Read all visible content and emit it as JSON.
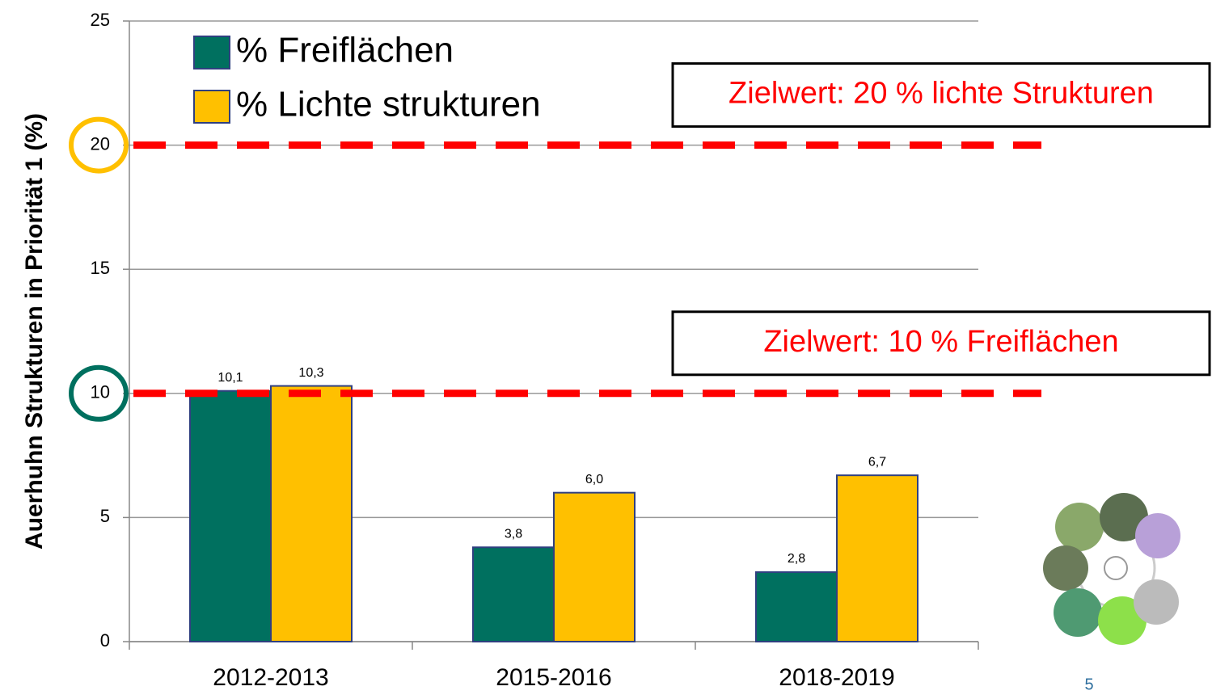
{
  "chart_data": {
    "type": "bar",
    "y_label": "Auerhuhn Strukturen in Priorität 1 (%)",
    "categories": [
      "2012-2013",
      "2015-2016",
      "2018-2019"
    ],
    "series": [
      {
        "name": "% Freiflächen",
        "color": "#00705f",
        "values": [
          10.1,
          3.8,
          2.8
        ],
        "value_labels": [
          "10,1",
          "3,8",
          "2,8"
        ]
      },
      {
        "name": "% Lichte strukturen",
        "color": "#ffc000",
        "values": [
          10.3,
          6.0,
          6.7
        ],
        "value_labels": [
          "10,3",
          "6,0",
          "6,7"
        ]
      }
    ],
    "ylim": [
      0,
      25
    ],
    "yticks": [
      0,
      5,
      10,
      15,
      20,
      25
    ],
    "grid": true,
    "legend": "top-left",
    "reference_lines": [
      {
        "value": 20,
        "color": "#ff0000",
        "label": "Zielwert: 20 % lichte Strukturen"
      },
      {
        "value": 10,
        "color": "#ff0000",
        "label": "Zielwert: 10 % Freiflächen"
      }
    ]
  },
  "slide_number": "5"
}
